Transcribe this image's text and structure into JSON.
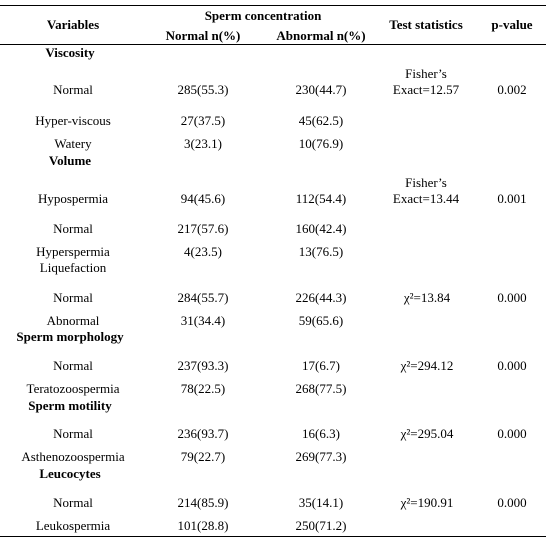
{
  "header": {
    "variables": "Variables",
    "sperm_concentration": "Sperm concentration",
    "normal": "Normal n(%)",
    "abnormal": "Abnormal n(%)",
    "test_statistics": "Test statistics",
    "p_value": "p-value"
  },
  "sections": [
    {
      "title": "Viscosity",
      "title_bold": true,
      "stat": "Fisher’s Exact=12.57",
      "p": "0.002",
      "rows": [
        {
          "label": "Normal",
          "normal": "285(55.3)",
          "abnormal": "230(44.7)"
        },
        {
          "label": "Hyper-viscous",
          "normal": "27(37.5)",
          "abnormal": "45(62.5)"
        },
        {
          "label": "Watery",
          "normal": "3(23.1)",
          "abnormal": "10(76.9)"
        }
      ]
    },
    {
      "title": "Volume",
      "title_bold": true,
      "stat": "Fisher’s Exact=13.44",
      "p": "0.001",
      "rows": [
        {
          "label": "Hypospermia",
          "normal": "94(45.6)",
          "abnormal": "112(54.4)"
        },
        {
          "label": "Normal",
          "normal": "217(57.6)",
          "abnormal": "160(42.4)"
        },
        {
          "label": "Hyperspermia",
          "normal": "4(23.5)",
          "abnormal": "13(76.5)"
        }
      ]
    },
    {
      "title": "Liquefaction",
      "title_bold": false,
      "stat": "χ²=13.84",
      "p": "0.000",
      "rows": [
        {
          "label": "Normal",
          "normal": "284(55.7)",
          "abnormal": "226(44.3)"
        },
        {
          "label": "Abnormal",
          "normal": "31(34.4)",
          "abnormal": "59(65.6)"
        }
      ]
    },
    {
      "title": "Sperm morphology",
      "title_bold": true,
      "stat": "χ²=294.12",
      "p": "0.000",
      "rows": [
        {
          "label": "Normal",
          "normal": "237(93.3)",
          "abnormal": "17(6.7)"
        },
        {
          "label": "Teratozoospermia",
          "normal": "78(22.5)",
          "abnormal": "268(77.5)"
        }
      ]
    },
    {
      "title": "Sperm motility",
      "title_bold": true,
      "stat": "χ²=295.04",
      "p": "0.000",
      "rows": [
        {
          "label": "Normal",
          "normal": "236(93.7)",
          "abnormal": "16(6.3)"
        },
        {
          "label": "Asthenozoospermia",
          "normal": "79(22.7)",
          "abnormal": "269(77.3)"
        }
      ]
    },
    {
      "title": "Leucocytes",
      "title_bold": true,
      "stat": "χ²=190.91",
      "p": "0.000",
      "rows": [
        {
          "label": "Normal",
          "normal": "214(85.9)",
          "abnormal": "35(14.1)"
        },
        {
          "label": "Leukospermia",
          "normal": "101(28.8)",
          "abnormal": "250(71.2)"
        }
      ]
    }
  ]
}
